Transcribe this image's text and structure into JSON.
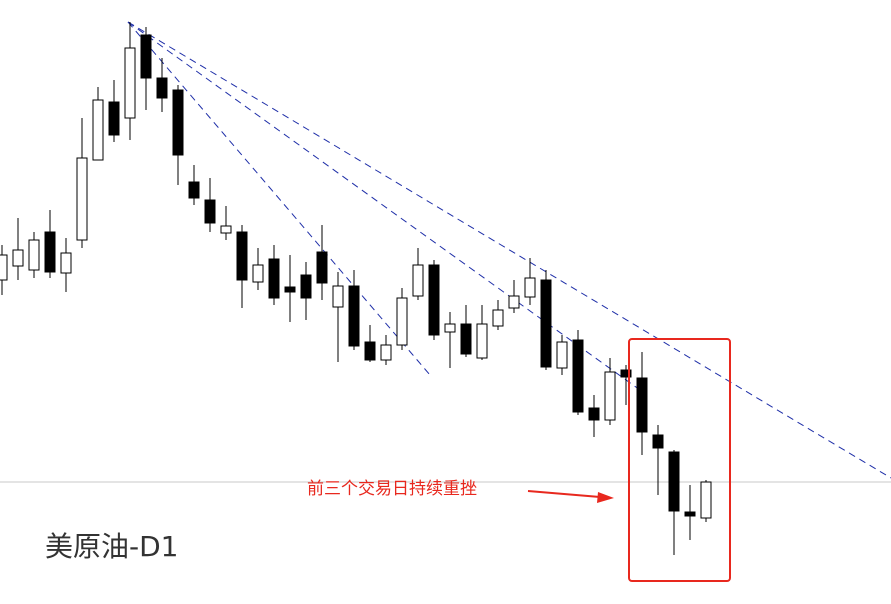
{
  "chart_data": {
    "type": "candlestick",
    "title": "美原油-D1",
    "annotation": "前三个交易日持续重挫",
    "up_color": "#ffffff",
    "down_color": "#000000",
    "ylim": [
      0,
      604
    ],
    "open": [
      324,
      338,
      334,
      372,
      331,
      364,
      444,
      502,
      486,
      569,
      526,
      514,
      422,
      404,
      371,
      372,
      322,
      345,
      317,
      329,
      352,
      297,
      318,
      262,
      244,
      259,
      308,
      339,
      272,
      280,
      246,
      278,
      296,
      307,
      324,
      236,
      264,
      196,
      184,
      234,
      226,
      169,
      152,
      92,
      86
    ],
    "high": [
      359,
      386,
      372,
      394,
      366,
      486,
      517,
      524,
      582,
      577,
      546,
      519,
      439,
      426,
      398,
      379,
      356,
      359,
      349,
      342,
      379,
      332,
      334,
      279,
      269,
      316,
      356,
      344,
      292,
      299,
      299,
      304,
      324,
      346,
      334,
      269,
      274,
      209,
      246,
      239,
      252,
      179,
      154,
      119,
      124
    ],
    "low": [
      309,
      324,
      326,
      326,
      312,
      356,
      444,
      462,
      464,
      494,
      492,
      419,
      399,
      372,
      364,
      296,
      314,
      299,
      282,
      284,
      304,
      242,
      254,
      242,
      239,
      254,
      304,
      264,
      236,
      247,
      244,
      274,
      291,
      299,
      234,
      229,
      189,
      167,
      179,
      199,
      149,
      109,
      49,
      64,
      82
    ],
    "close": [
      349,
      354,
      364,
      332,
      351,
      446,
      504,
      469,
      556,
      526,
      506,
      449,
      406,
      381,
      378,
      324,
      339,
      306,
      312,
      306,
      321,
      318,
      258,
      244,
      259,
      306,
      339,
      269,
      280,
      250,
      280,
      294,
      308,
      326,
      237,
      262,
      192,
      184,
      232,
      227,
      172,
      156,
      93,
      88,
      122
    ]
  }
}
